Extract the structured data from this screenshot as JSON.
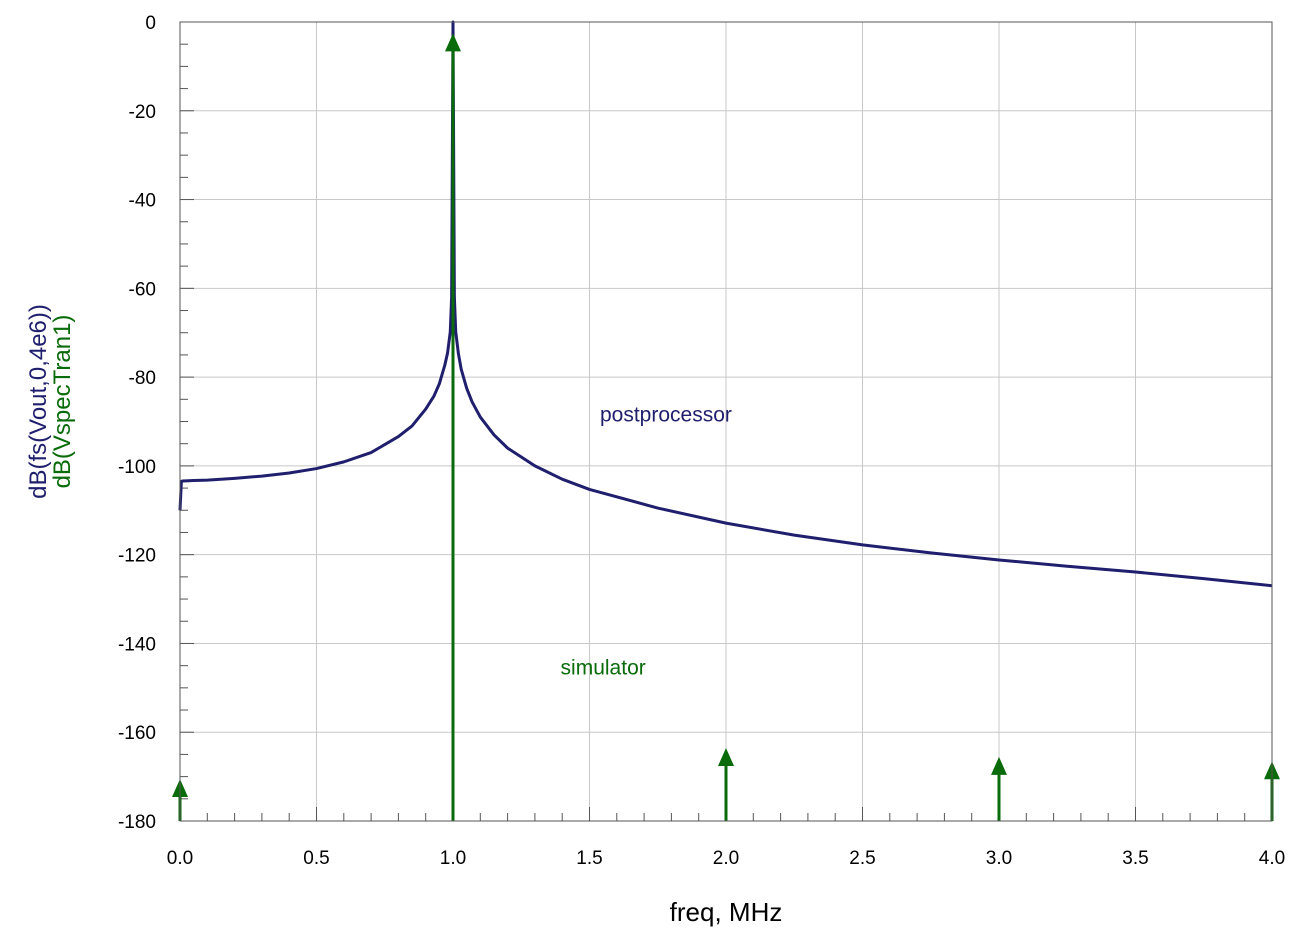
{
  "chart_data": {
    "type": "line",
    "title": "",
    "xlabel": "freq, MHz",
    "ylabels": [
      {
        "text": "dB(fs(Vout,0,4e6))",
        "color": "#1f1f6e"
      },
      {
        "text": "dB(VspecTran1)",
        "color": "#0a6b0a"
      }
    ],
    "xlim": [
      0.0,
      4.0
    ],
    "ylim": [
      -180,
      0
    ],
    "grid": true,
    "x_ticks": [
      "0.0",
      "0.5",
      "1.0",
      "1.5",
      "2.0",
      "2.5",
      "3.0",
      "3.5",
      "4.0"
    ],
    "y_ticks": [
      "0",
      "-20",
      "-40",
      "-60",
      "-80",
      "-100",
      "-120",
      "-140",
      "-160",
      "-180"
    ],
    "series": [
      {
        "key": "postprocessor",
        "color": "#1f1f6e",
        "style": "line",
        "x": [
          0.0,
          0.005,
          0.01,
          0.05,
          0.1,
          0.2,
          0.3,
          0.4,
          0.5,
          0.6,
          0.7,
          0.8,
          0.85,
          0.9,
          0.93,
          0.95,
          0.97,
          0.98,
          0.99,
          0.995,
          1.0,
          1.005,
          1.01,
          1.02,
          1.03,
          1.05,
          1.07,
          1.1,
          1.15,
          1.2,
          1.3,
          1.4,
          1.5,
          1.75,
          2.0,
          2.25,
          2.5,
          2.75,
          3.0,
          3.25,
          3.5,
          3.75,
          4.0
        ],
        "y": [
          -110,
          -103.5,
          -103.4,
          -103.3,
          -103.2,
          -102.8,
          -102.3,
          -101.6,
          -100.6,
          -99.1,
          -97.0,
          -93.4,
          -91.0,
          -87.2,
          -84.3,
          -81.5,
          -77.3,
          -74.6,
          -69.8,
          -62.0,
          0,
          -62.0,
          -69.8,
          -74.8,
          -78.2,
          -82.5,
          -85.6,
          -89.0,
          -93.0,
          -96.0,
          -100.0,
          -103.0,
          -105.3,
          -109.5,
          -112.9,
          -115.6,
          -117.8,
          -119.6,
          -121.2,
          -122.6,
          -123.9,
          -125.4,
          -127.0
        ]
      },
      {
        "key": "simulator",
        "color": "#0a6b0a",
        "style": "stem",
        "x": [
          0.0,
          1.0,
          2.0,
          3.0,
          4.0
        ],
        "y": [
          -171,
          -3,
          -164,
          -166,
          -167
        ]
      }
    ],
    "annotations": [
      {
        "text": "postprocessor",
        "x": 1.78,
        "y": -90,
        "color": "#1f1f6e"
      },
      {
        "text": "simulator",
        "x": 1.55,
        "y": -147,
        "color": "#0a6b0a"
      }
    ]
  }
}
